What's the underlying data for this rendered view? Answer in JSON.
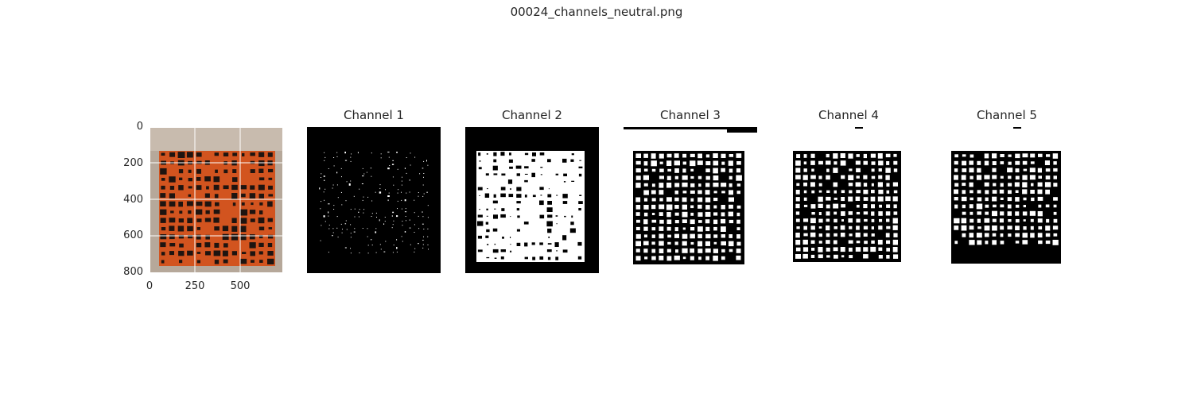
{
  "figure": {
    "suptitle": "00024_channels_neutral.png"
  },
  "original": {
    "y_ticks": [
      "0",
      "200",
      "400",
      "600",
      "800"
    ],
    "x_ticks": [
      "0",
      "250",
      "500"
    ],
    "colors": {
      "wall": "#b6a89a",
      "weave": "#d2541f",
      "holes": "#1e1410",
      "grid": "#ffffff"
    }
  },
  "channels": [
    {
      "title": "Channel 1",
      "style": "sparse-white-on-black"
    },
    {
      "title": "Channel 2",
      "style": "dense-white-square-on-black"
    },
    {
      "title": "Channel 3",
      "style": "black-grid-on-white"
    },
    {
      "title": "Channel 4",
      "style": "black-grid-on-white"
    },
    {
      "title": "Channel 5",
      "style": "black-grid-on-white-dark-bottom"
    }
  ]
}
